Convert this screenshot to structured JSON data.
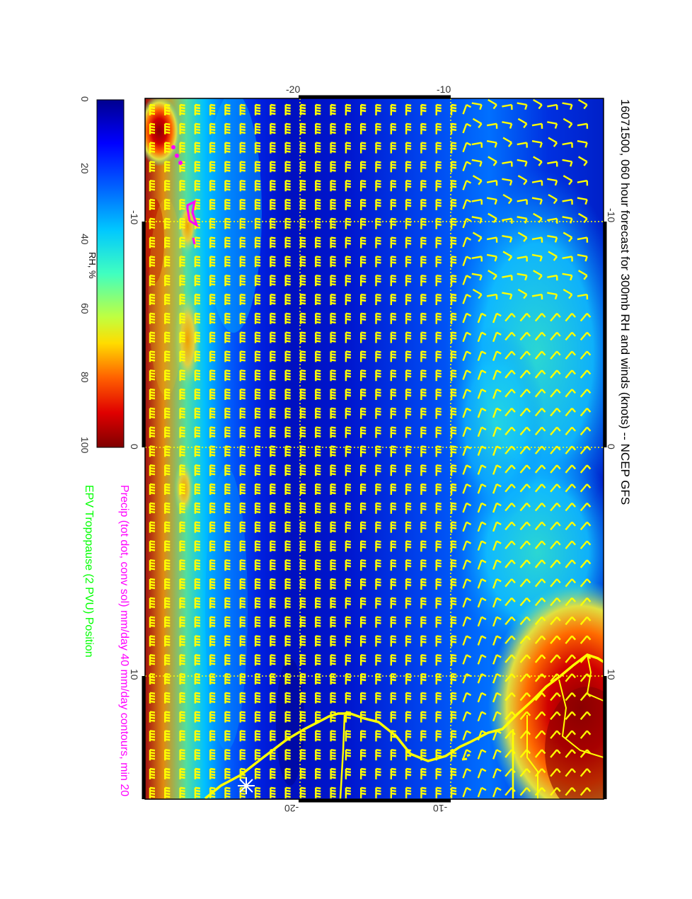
{
  "title": "16071500, 060 hour forecast for 300mb RH and winds (knots) -- NCEP GFS",
  "legend": {
    "precip": "Precip (tot dot, conv sol) mm/day 40 mm/day contours, min 20",
    "epv": "EPV Tropopause (2 PVU) Position",
    "colorbar_label": "RH, %",
    "colorbar_ticks": [
      "0",
      "20",
      "40",
      "60",
      "80",
      "100"
    ]
  },
  "axes": {
    "top_ticks": [
      "-20",
      "-10"
    ],
    "bottom_ticks": [
      "-20",
      "-10"
    ],
    "left_ticks": [
      "-10",
      "0",
      "10"
    ],
    "right_ticks": [
      "-10",
      "0",
      "10"
    ]
  },
  "colors": {
    "precip": "#ff00ff",
    "epv": "#00ff00",
    "barbs": "#ffff00",
    "coast": "#ffff00",
    "grid": "#ffff00",
    "rh_scale": [
      "#00008f",
      "#0000ff",
      "#007fff",
      "#00ffff",
      "#7fff7f",
      "#ffff00",
      "#ff7f00",
      "#ff0000",
      "#7f0000"
    ]
  }
}
